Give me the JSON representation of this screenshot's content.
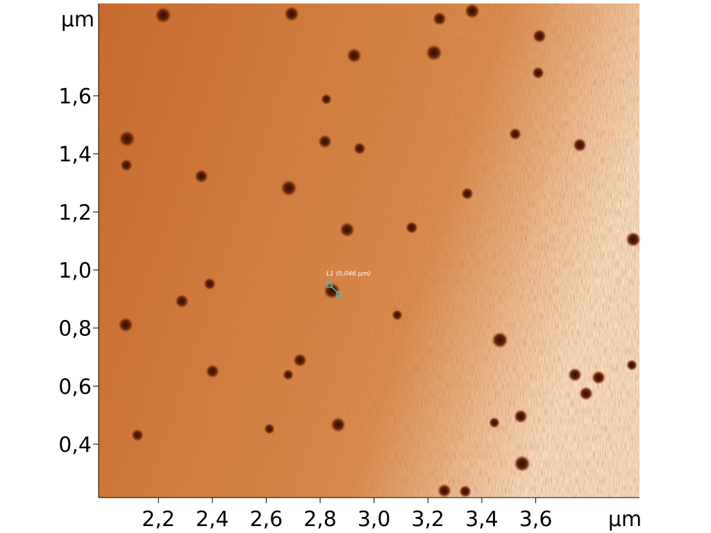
{
  "chart_data": {
    "type": "image",
    "xlabel": "µm",
    "ylabel": "µm",
    "annotation": "L1 (0,046 µm)",
    "xlim": [
      1.978,
      3.985
    ],
    "ylim": [
      0.216,
      1.918
    ],
    "xticks": [
      {
        "value": 2.2,
        "label": "2,2"
      },
      {
        "value": 2.4,
        "label": "2,4"
      },
      {
        "value": 2.6,
        "label": "2,6"
      },
      {
        "value": 2.8,
        "label": "2,8"
      },
      {
        "value": 3.0,
        "label": "3,0"
      },
      {
        "value": 3.2,
        "label": "3,2"
      },
      {
        "value": 3.4,
        "label": "3,4"
      },
      {
        "value": 3.6,
        "label": "3,6"
      }
    ],
    "yticks": [
      {
        "value": 0.4,
        "label": "0,4"
      },
      {
        "value": 0.6,
        "label": "0,6"
      },
      {
        "value": 0.8,
        "label": "0,8"
      },
      {
        "value": 1.0,
        "label": "1,0"
      },
      {
        "value": 1.2,
        "label": "1,2"
      },
      {
        "value": 1.4,
        "label": "1,4"
      },
      {
        "value": 1.6,
        "label": "1,6"
      }
    ]
  }
}
